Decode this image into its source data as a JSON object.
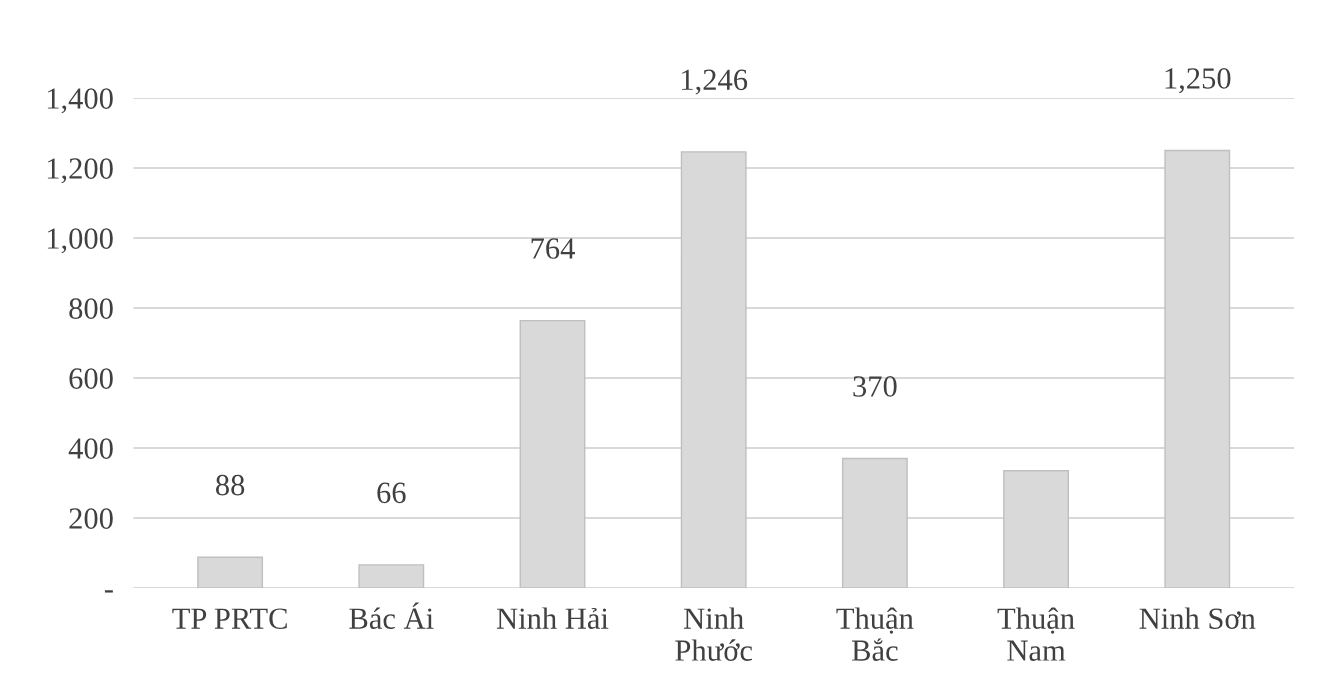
{
  "chart_data": {
    "type": "bar",
    "categories": [
      "TP PRTC",
      "Bác Ái",
      "Ninh Hải",
      "Ninh\nPhước",
      "Thuận\nBắc",
      "Thuận\nNam",
      "Ninh Sơn"
    ],
    "values": [
      88,
      66,
      764,
      1246,
      370,
      335,
      1250
    ],
    "value_labels": [
      "88",
      "66",
      "764",
      "1,246",
      "370",
      null,
      "1,250"
    ],
    "color": "#d9d9d9",
    "ylim": [
      0,
      1400
    ],
    "yticks": [
      {
        "value": 0,
        "label": "-"
      },
      {
        "value": 200,
        "label": "200"
      },
      {
        "value": 400,
        "label": "400"
      },
      {
        "value": 600,
        "label": "600"
      },
      {
        "value": 800,
        "label": "800"
      },
      {
        "value": 1000,
        "label": "1,000"
      },
      {
        "value": 1200,
        "label": "1,200"
      },
      {
        "value": 1400,
        "label": "1,400"
      }
    ],
    "grid": "y"
  }
}
